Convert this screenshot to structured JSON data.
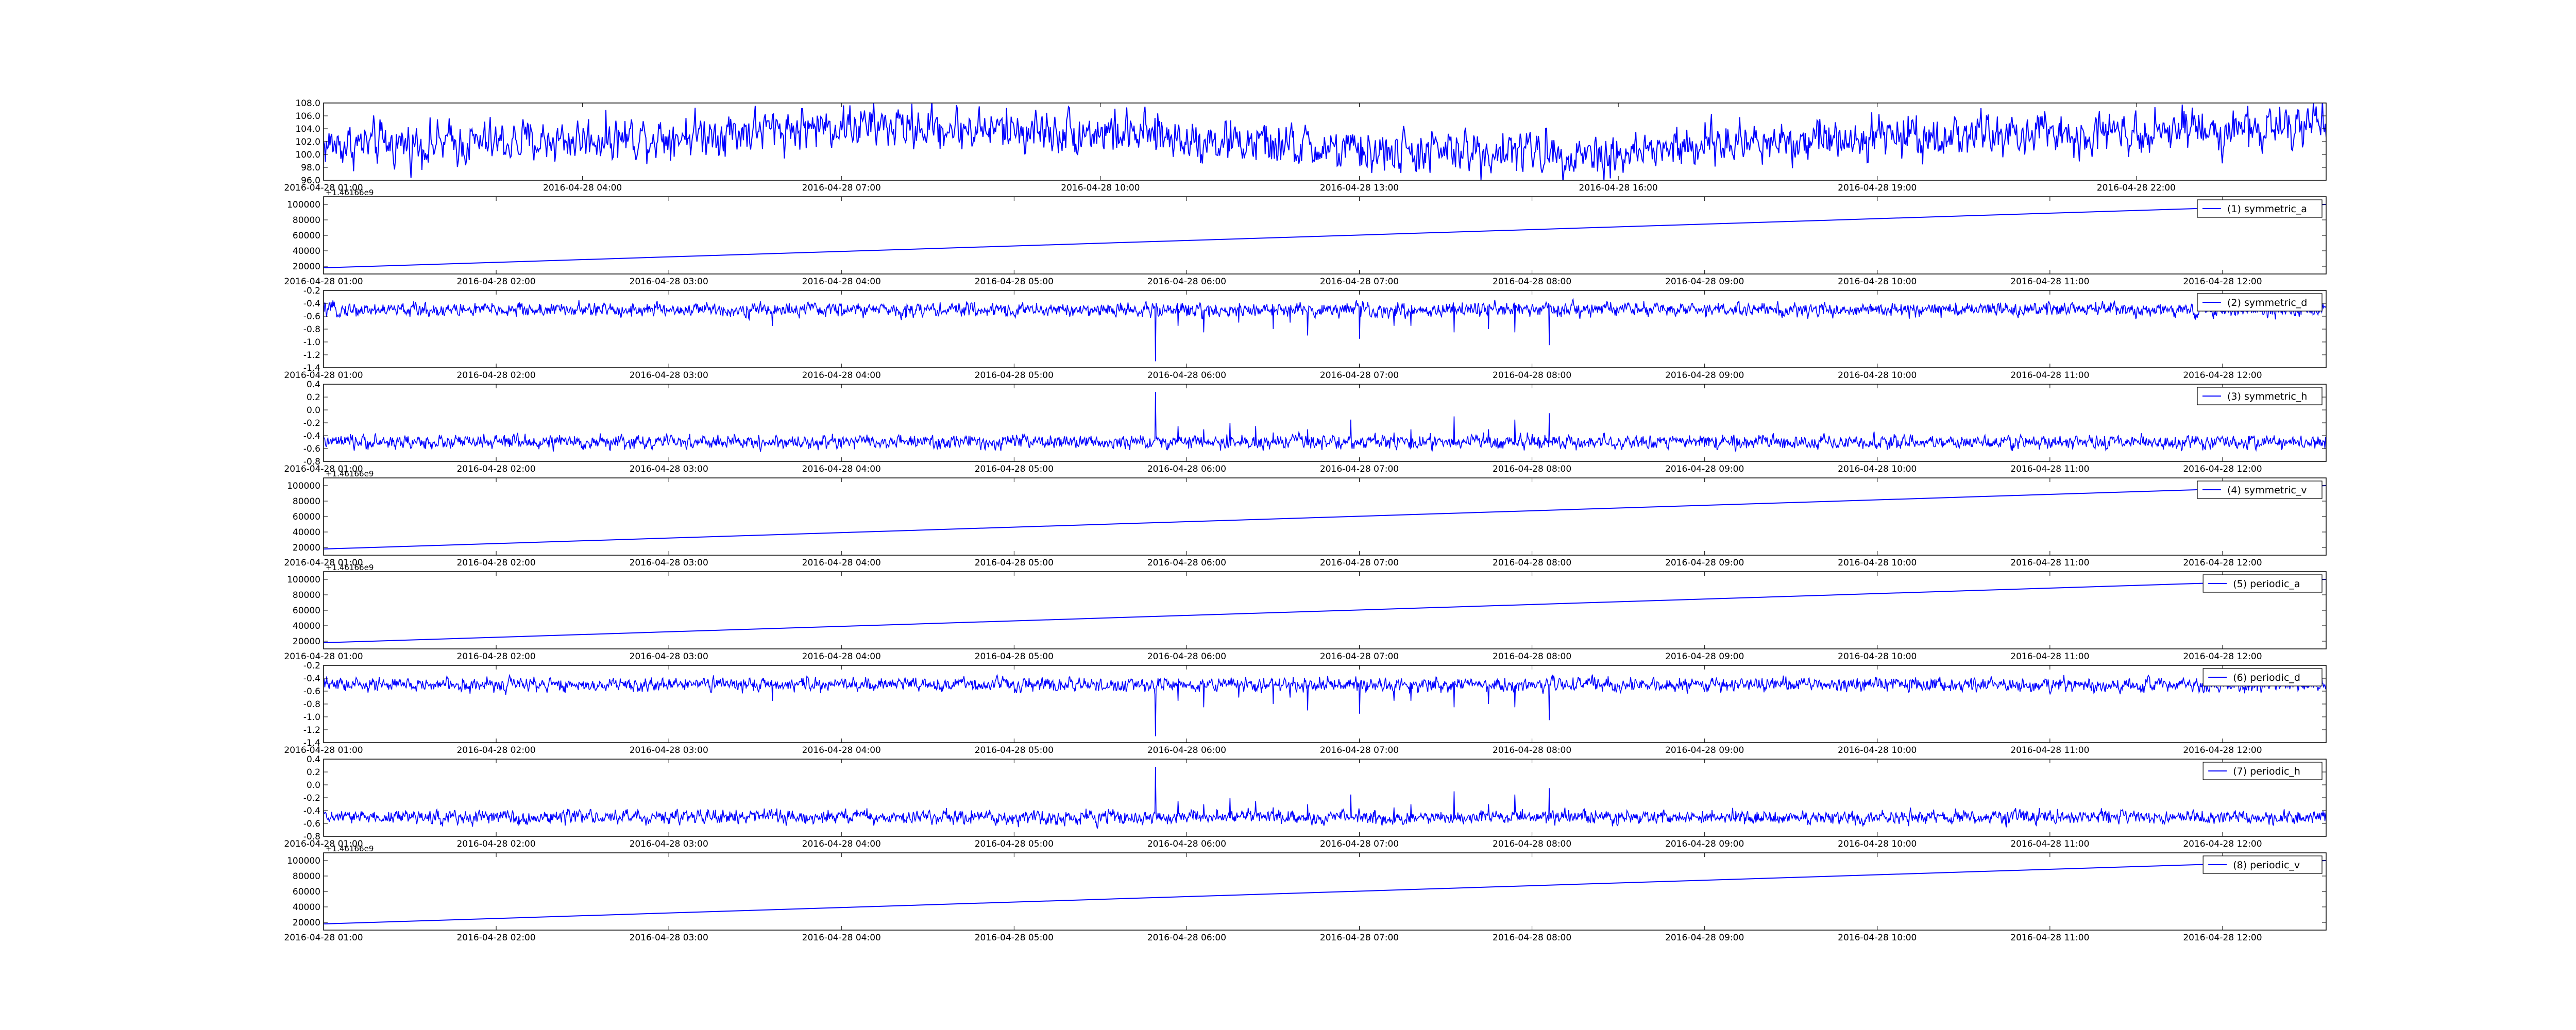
{
  "colors": {
    "series": "#0000ff",
    "axes": "#000000",
    "background": "#ffffff",
    "legend_border": "#000000"
  },
  "chart_data": [
    {
      "type": "line",
      "series_shape": "noisy",
      "ylim": [
        96,
        108
      ],
      "yticks": [
        96,
        98,
        100,
        102,
        104,
        106,
        108
      ],
      "xticks": [
        "2016-04-28 01:00",
        "2016-04-28 04:00",
        "2016-04-28 07:00",
        "2016-04-28 10:00",
        "2016-04-28 13:00",
        "2016-04-28 16:00",
        "2016-04-28 19:00",
        "2016-04-28 22:00"
      ],
      "x_tick_positions": [
        0,
        3,
        6,
        9,
        12,
        15,
        18,
        21
      ],
      "x_range": [
        0,
        23.2
      ],
      "baseline": [
        {
          "x": 0,
          "y": 101.5
        },
        {
          "x": 2,
          "y": 101.8
        },
        {
          "x": 4,
          "y": 103
        },
        {
          "x": 6,
          "y": 104.5
        },
        {
          "x": 7.5,
          "y": 104
        },
        {
          "x": 9,
          "y": 103.5
        },
        {
          "x": 10.5,
          "y": 102
        },
        {
          "x": 12,
          "y": 100.3
        },
        {
          "x": 14,
          "y": 100.5
        },
        {
          "x": 15,
          "y": 100
        },
        {
          "x": 16.5,
          "y": 102
        },
        {
          "x": 18,
          "y": 103
        },
        {
          "x": 20,
          "y": 103
        },
        {
          "x": 21,
          "y": 104
        },
        {
          "x": 23.2,
          "y": 104
        }
      ],
      "noise": 1.6,
      "spikes": [],
      "offset_label": "",
      "legend": ""
    },
    {
      "type": "line",
      "series_shape": "linear",
      "ylim": [
        10000,
        110000
      ],
      "yticks": [
        20000,
        40000,
        60000,
        80000,
        100000
      ],
      "offset_label": "+1.46166e9",
      "xticks": [
        "2016-04-28 01:00",
        "2016-04-28 02:00",
        "2016-04-28 03:00",
        "2016-04-28 04:00",
        "2016-04-28 05:00",
        "2016-04-28 06:00",
        "2016-04-28 07:00",
        "2016-04-28 08:00",
        "2016-04-28 09:00",
        "2016-04-28 10:00",
        "2016-04-28 11:00",
        "2016-04-28 12:00"
      ],
      "x_tick_positions": [
        0,
        1,
        2,
        3,
        4,
        5,
        6,
        7,
        8,
        9,
        10,
        11
      ],
      "x_range": [
        0,
        11.6
      ],
      "points": [
        {
          "x": 0,
          "y": 18000
        },
        {
          "x": 11.6,
          "y": 100000
        }
      ],
      "legend": "(1) symmetric_a"
    },
    {
      "type": "line",
      "series_shape": "noisy",
      "ylim": [
        -1.4,
        -0.2
      ],
      "yticks": [
        -1.4,
        -1.2,
        -1.0,
        -0.8,
        -0.6,
        -0.4,
        -0.2
      ],
      "offset_label": "",
      "xticks": [
        "2016-04-28 01:00",
        "2016-04-28 02:00",
        "2016-04-28 03:00",
        "2016-04-28 04:00",
        "2016-04-28 05:00",
        "2016-04-28 06:00",
        "2016-04-28 07:00",
        "2016-04-28 08:00",
        "2016-04-28 09:00",
        "2016-04-28 10:00",
        "2016-04-28 11:00",
        "2016-04-28 12:00"
      ],
      "x_tick_positions": [
        0,
        1,
        2,
        3,
        4,
        5,
        6,
        7,
        8,
        9,
        10,
        11
      ],
      "x_range": [
        0,
        11.6
      ],
      "baseline": [
        {
          "x": 0,
          "y": -0.5
        },
        {
          "x": 11.6,
          "y": -0.5
        }
      ],
      "noise": 0.05,
      "spikes": [
        {
          "x": 4.82,
          "y": -1.3
        },
        {
          "x": 4.95,
          "y": -0.75
        },
        {
          "x": 5.1,
          "y": -0.85
        },
        {
          "x": 5.3,
          "y": -0.7
        },
        {
          "x": 5.5,
          "y": -0.8
        },
        {
          "x": 5.6,
          "y": -0.7
        },
        {
          "x": 5.7,
          "y": -0.9
        },
        {
          "x": 6.0,
          "y": -0.95
        },
        {
          "x": 6.2,
          "y": -0.75
        },
        {
          "x": 6.3,
          "y": -0.75
        },
        {
          "x": 6.55,
          "y": -0.85
        },
        {
          "x": 6.75,
          "y": -0.8
        },
        {
          "x": 6.9,
          "y": -0.85
        },
        {
          "x": 7.1,
          "y": -1.05
        },
        {
          "x": 2.6,
          "y": -0.75
        }
      ],
      "legend": "(2) symmetric_d"
    },
    {
      "type": "line",
      "series_shape": "noisy",
      "ylim": [
        -0.8,
        0.4
      ],
      "yticks": [
        -0.8,
        -0.6,
        -0.4,
        -0.2,
        0.0,
        0.2,
        0.4
      ],
      "offset_label": "",
      "xticks": [
        "2016-04-28 01:00",
        "2016-04-28 02:00",
        "2016-04-28 03:00",
        "2016-04-28 04:00",
        "2016-04-28 05:00",
        "2016-04-28 06:00",
        "2016-04-28 07:00",
        "2016-04-28 08:00",
        "2016-04-28 09:00",
        "2016-04-28 10:00",
        "2016-04-28 11:00",
        "2016-04-28 12:00"
      ],
      "x_tick_positions": [
        0,
        1,
        2,
        3,
        4,
        5,
        6,
        7,
        8,
        9,
        10,
        11
      ],
      "x_range": [
        0,
        11.6
      ],
      "baseline": [
        {
          "x": 0,
          "y": -0.5
        },
        {
          "x": 11.6,
          "y": -0.5
        }
      ],
      "noise": 0.05,
      "spikes": [
        {
          "x": 4.82,
          "y": 0.28
        },
        {
          "x": 4.95,
          "y": -0.25
        },
        {
          "x": 5.1,
          "y": -0.3
        },
        {
          "x": 5.25,
          "y": -0.2
        },
        {
          "x": 5.4,
          "y": -0.25
        },
        {
          "x": 5.5,
          "y": -0.35
        },
        {
          "x": 5.7,
          "y": -0.3
        },
        {
          "x": 5.95,
          "y": -0.15
        },
        {
          "x": 6.2,
          "y": -0.35
        },
        {
          "x": 6.3,
          "y": -0.3
        },
        {
          "x": 6.55,
          "y": -0.1
        },
        {
          "x": 6.75,
          "y": -0.3
        },
        {
          "x": 6.9,
          "y": -0.15
        },
        {
          "x": 7.1,
          "y": -0.05
        }
      ],
      "legend": "(3) symmetric_h"
    },
    {
      "type": "line",
      "series_shape": "linear",
      "ylim": [
        10000,
        110000
      ],
      "yticks": [
        20000,
        40000,
        60000,
        80000,
        100000
      ],
      "offset_label": "+1.46166e9",
      "xticks": [
        "2016-04-28 01:00",
        "2016-04-28 02:00",
        "2016-04-28 03:00",
        "2016-04-28 04:00",
        "2016-04-28 05:00",
        "2016-04-28 06:00",
        "2016-04-28 07:00",
        "2016-04-28 08:00",
        "2016-04-28 09:00",
        "2016-04-28 10:00",
        "2016-04-28 11:00",
        "2016-04-28 12:00"
      ],
      "x_tick_positions": [
        0,
        1,
        2,
        3,
        4,
        5,
        6,
        7,
        8,
        9,
        10,
        11
      ],
      "x_range": [
        0,
        11.6
      ],
      "points": [
        {
          "x": 0,
          "y": 18000
        },
        {
          "x": 11.6,
          "y": 100000
        }
      ],
      "legend": "(4) symmetric_v"
    },
    {
      "type": "line",
      "series_shape": "linear",
      "ylim": [
        10000,
        110000
      ],
      "yticks": [
        20000,
        40000,
        60000,
        80000,
        100000
      ],
      "offset_label": "+1.46166e9",
      "xticks": [
        "2016-04-28 01:00",
        "2016-04-28 02:00",
        "2016-04-28 03:00",
        "2016-04-28 04:00",
        "2016-04-28 05:00",
        "2016-04-28 06:00",
        "2016-04-28 07:00",
        "2016-04-28 08:00",
        "2016-04-28 09:00",
        "2016-04-28 10:00",
        "2016-04-28 11:00",
        "2016-04-28 12:00"
      ],
      "x_tick_positions": [
        0,
        1,
        2,
        3,
        4,
        5,
        6,
        7,
        8,
        9,
        10,
        11
      ],
      "x_range": [
        0,
        11.6
      ],
      "points": [
        {
          "x": 0,
          "y": 18000
        },
        {
          "x": 11.6,
          "y": 100000
        }
      ],
      "legend": "(5) periodic_a"
    },
    {
      "type": "line",
      "series_shape": "noisy",
      "ylim": [
        -1.4,
        -0.2
      ],
      "yticks": [
        -1.4,
        -1.2,
        -1.0,
        -0.8,
        -0.6,
        -0.4,
        -0.2
      ],
      "offset_label": "",
      "xticks": [
        "2016-04-28 01:00",
        "2016-04-28 02:00",
        "2016-04-28 03:00",
        "2016-04-28 04:00",
        "2016-04-28 05:00",
        "2016-04-28 06:00",
        "2016-04-28 07:00",
        "2016-04-28 08:00",
        "2016-04-28 09:00",
        "2016-04-28 10:00",
        "2016-04-28 11:00",
        "2016-04-28 12:00"
      ],
      "x_tick_positions": [
        0,
        1,
        2,
        3,
        4,
        5,
        6,
        7,
        8,
        9,
        10,
        11
      ],
      "x_range": [
        0,
        11.6
      ],
      "baseline": [
        {
          "x": 0,
          "y": -0.5
        },
        {
          "x": 11.6,
          "y": -0.5
        }
      ],
      "noise": 0.05,
      "spikes": [
        {
          "x": 4.82,
          "y": -1.3
        },
        {
          "x": 4.95,
          "y": -0.75
        },
        {
          "x": 5.1,
          "y": -0.85
        },
        {
          "x": 5.3,
          "y": -0.7
        },
        {
          "x": 5.5,
          "y": -0.8
        },
        {
          "x": 5.6,
          "y": -0.7
        },
        {
          "x": 5.7,
          "y": -0.9
        },
        {
          "x": 6.0,
          "y": -0.95
        },
        {
          "x": 6.2,
          "y": -0.75
        },
        {
          "x": 6.3,
          "y": -0.75
        },
        {
          "x": 6.55,
          "y": -0.85
        },
        {
          "x": 6.75,
          "y": -0.8
        },
        {
          "x": 6.9,
          "y": -0.85
        },
        {
          "x": 7.1,
          "y": -1.05
        },
        {
          "x": 2.6,
          "y": -0.75
        }
      ],
      "legend": "(6) periodic_d"
    },
    {
      "type": "line",
      "series_shape": "noisy",
      "ylim": [
        -0.8,
        0.4
      ],
      "yticks": [
        -0.8,
        -0.6,
        -0.4,
        -0.2,
        0.0,
        0.2,
        0.4
      ],
      "offset_label": "",
      "xticks": [
        "2016-04-28 01:00",
        "2016-04-28 02:00",
        "2016-04-28 03:00",
        "2016-04-28 04:00",
        "2016-04-28 05:00",
        "2016-04-28 06:00",
        "2016-04-28 07:00",
        "2016-04-28 08:00",
        "2016-04-28 09:00",
        "2016-04-28 10:00",
        "2016-04-28 11:00",
        "2016-04-28 12:00"
      ],
      "x_tick_positions": [
        0,
        1,
        2,
        3,
        4,
        5,
        6,
        7,
        8,
        9,
        10,
        11
      ],
      "x_range": [
        0,
        11.6
      ],
      "baseline": [
        {
          "x": 0,
          "y": -0.5
        },
        {
          "x": 11.6,
          "y": -0.5
        }
      ],
      "noise": 0.05,
      "spikes": [
        {
          "x": 4.82,
          "y": 0.28
        },
        {
          "x": 4.95,
          "y": -0.25
        },
        {
          "x": 5.1,
          "y": -0.3
        },
        {
          "x": 5.25,
          "y": -0.2
        },
        {
          "x": 5.4,
          "y": -0.25
        },
        {
          "x": 5.5,
          "y": -0.35
        },
        {
          "x": 5.7,
          "y": -0.3
        },
        {
          "x": 5.95,
          "y": -0.15
        },
        {
          "x": 6.2,
          "y": -0.35
        },
        {
          "x": 6.3,
          "y": -0.3
        },
        {
          "x": 6.55,
          "y": -0.1
        },
        {
          "x": 6.75,
          "y": -0.3
        },
        {
          "x": 6.9,
          "y": -0.15
        },
        {
          "x": 7.1,
          "y": -0.05
        }
      ],
      "legend": "(7) periodic_h"
    },
    {
      "type": "line",
      "series_shape": "linear",
      "ylim": [
        10000,
        110000
      ],
      "yticks": [
        20000,
        40000,
        60000,
        80000,
        100000
      ],
      "offset_label": "+1.46166e9",
      "xticks": [
        "2016-04-28 01:00",
        "2016-04-28 02:00",
        "2016-04-28 03:00",
        "2016-04-28 04:00",
        "2016-04-28 05:00",
        "2016-04-28 06:00",
        "2016-04-28 07:00",
        "2016-04-28 08:00",
        "2016-04-28 09:00",
        "2016-04-28 10:00",
        "2016-04-28 11:00",
        "2016-04-28 12:00"
      ],
      "x_tick_positions": [
        0,
        1,
        2,
        3,
        4,
        5,
        6,
        7,
        8,
        9,
        10,
        11
      ],
      "x_range": [
        0,
        11.6
      ],
      "points": [
        {
          "x": 0,
          "y": 18000
        },
        {
          "x": 11.6,
          "y": 100000
        }
      ],
      "legend": "(8) periodic_v"
    }
  ]
}
